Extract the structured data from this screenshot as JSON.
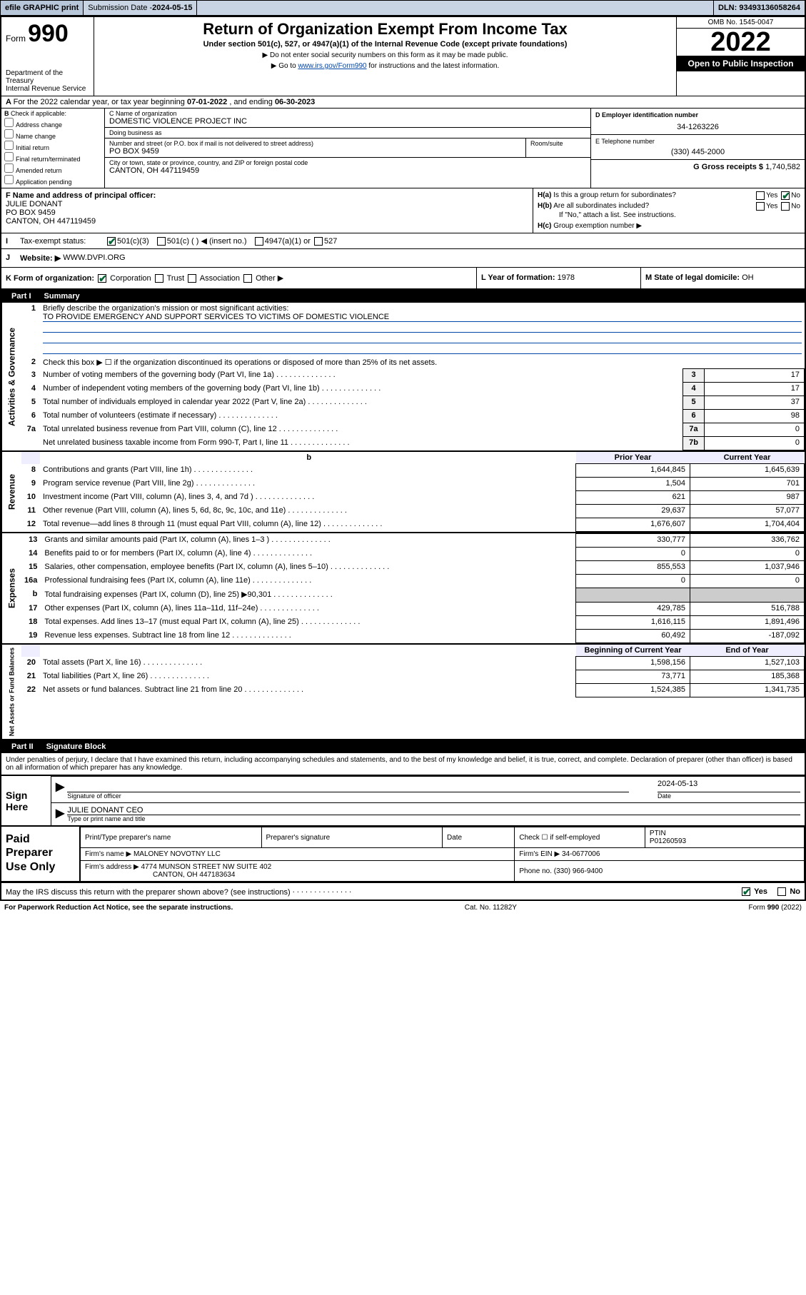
{
  "topbar": {
    "efile": "efile GRAPHIC print",
    "submission_label": "Submission Date - ",
    "submission_date": "2024-05-15",
    "dln_label": "DLN: ",
    "dln": "93493136058264"
  },
  "header": {
    "form_word": "Form",
    "form_num": "990",
    "dept": "Department of the Treasury\nInternal Revenue Service",
    "title": "Return of Organization Exempt From Income Tax",
    "sub": "Under section 501(c), 527, or 4947(a)(1) of the Internal Revenue Code (except private foundations)",
    "note1": "▶ Do not enter social security numbers on this form as it may be made public.",
    "note2_pre": "▶ Go to ",
    "note2_link": "www.irs.gov/Form990",
    "note2_post": " for instructions and the latest information.",
    "omb": "OMB No. 1545-0047",
    "year": "2022",
    "inspect": "Open to Public Inspection"
  },
  "A": {
    "text_pre": "For the 2022 calendar year, or tax year beginning ",
    "begin": "07-01-2022",
    "mid": " , and ending ",
    "end": "06-30-2023"
  },
  "B": {
    "label": "Check if applicable:",
    "opts": [
      "Address change",
      "Name change",
      "Initial return",
      "Final return/terminated",
      "Amended return",
      "Application pending"
    ],
    "lead": "B"
  },
  "C": {
    "name_label": "C Name of organization",
    "name": "DOMESTIC VIOLENCE PROJECT INC",
    "dba_label": "Doing business as",
    "dba": "",
    "street_label": "Number and street (or P.O. box if mail is not delivered to street address)",
    "room_label": "Room/suite",
    "street": "PO BOX 9459",
    "city_label": "City or town, state or province, country, and ZIP or foreign postal code",
    "city": "CANTON, OH  447119459"
  },
  "D": {
    "label": "D Employer identification number",
    "value": "34-1263226"
  },
  "E": {
    "label": "E Telephone number",
    "value": "(330) 445-2000"
  },
  "G": {
    "label": "G Gross receipts $",
    "value": "1,740,582"
  },
  "F": {
    "label": "F Name and address of principal officer:",
    "name": "JULIE DONANT",
    "addr1": "PO BOX 9459",
    "addr2": "CANTON, OH  447119459"
  },
  "H": {
    "a": "Is this a group return for subordinates?",
    "b": "Are all subordinates included?",
    "b_note": "If \"No,\" attach a list. See instructions.",
    "c_label": "Group exemption number ▶",
    "a_lead": "H(a)",
    "b_lead": "H(b)",
    "c_lead": "H(c)",
    "yes": "Yes",
    "no": "No"
  },
  "I": {
    "label": "Tax-exempt status:",
    "lead": "I",
    "o1": "501(c)(3)",
    "o2": "501(c) (   ) ◀ (insert no.)",
    "o3": "4947(a)(1) or",
    "o4": "527"
  },
  "J": {
    "lead": "J",
    "label": "Website: ▶",
    "value": "WWW.DVPI.ORG"
  },
  "K": {
    "label": "K Form of organization:",
    "o1": "Corporation",
    "o2": "Trust",
    "o3": "Association",
    "o4": "Other ▶",
    "L_label": "L Year of formation:",
    "L_val": "1978",
    "M_label": "M State of legal domicile:",
    "M_val": "OH"
  },
  "part1": {
    "label": "Part I",
    "title": "Summary"
  },
  "summary": {
    "l1_label": "Briefly describe the organization's mission or most significant activities:",
    "l1_text": "TO PROVIDE EMERGENCY AND SUPPORT SERVICES TO VICTIMS OF DOMESTIC VIOLENCE",
    "l2": "Check this box ▶ ☐  if the organization discontinued its operations or disposed of more than 25% of its net assets.",
    "rows_ag": [
      {
        "n": "3",
        "t": "Number of voting members of the governing body (Part VI, line 1a)",
        "lbl": "3",
        "v": "17"
      },
      {
        "n": "4",
        "t": "Number of independent voting members of the governing body (Part VI, line 1b)",
        "lbl": "4",
        "v": "17"
      },
      {
        "n": "5",
        "t": "Total number of individuals employed in calendar year 2022 (Part V, line 2a)",
        "lbl": "5",
        "v": "37"
      },
      {
        "n": "6",
        "t": "Total number of volunteers (estimate if necessary)",
        "lbl": "6",
        "v": "98"
      },
      {
        "n": "7a",
        "t": "Total unrelated business revenue from Part VIII, column (C), line 12",
        "lbl": "7a",
        "v": "0"
      },
      {
        "n": "",
        "t": "Net unrelated business taxable income from Form 990-T, Part I, line 11",
        "lbl": "7b",
        "v": "0"
      }
    ],
    "vlabel_ag": "Activities & Governance",
    "hdr_prior": "Prior Year",
    "hdr_curr": "Current Year",
    "vlabel_rev": "Revenue",
    "rows_rev": [
      {
        "n": "8",
        "t": "Contributions and grants (Part VIII, line 1h)",
        "p": "1,644,845",
        "c": "1,645,639"
      },
      {
        "n": "9",
        "t": "Program service revenue (Part VIII, line 2g)",
        "p": "1,504",
        "c": "701"
      },
      {
        "n": "10",
        "t": "Investment income (Part VIII, column (A), lines 3, 4, and 7d )",
        "p": "621",
        "c": "987"
      },
      {
        "n": "11",
        "t": "Other revenue (Part VIII, column (A), lines 5, 6d, 8c, 9c, 10c, and 11e)",
        "p": "29,637",
        "c": "57,077"
      },
      {
        "n": "12",
        "t": "Total revenue—add lines 8 through 11 (must equal Part VIII, column (A), line 12)",
        "p": "1,676,607",
        "c": "1,704,404"
      }
    ],
    "vlabel_exp": "Expenses",
    "rows_exp": [
      {
        "n": "13",
        "t": "Grants and similar amounts paid (Part IX, column (A), lines 1–3 )",
        "p": "330,777",
        "c": "336,762"
      },
      {
        "n": "14",
        "t": "Benefits paid to or for members (Part IX, column (A), line 4)",
        "p": "0",
        "c": "0"
      },
      {
        "n": "15",
        "t": "Salaries, other compensation, employee benefits (Part IX, column (A), lines 5–10)",
        "p": "855,553",
        "c": "1,037,946"
      },
      {
        "n": "16a",
        "t": "Professional fundraising fees (Part IX, column (A), line 11e)",
        "p": "0",
        "c": "0"
      },
      {
        "n": "b",
        "t": "Total fundraising expenses (Part IX, column (D), line 25) ▶90,301",
        "p": "",
        "c": ""
      },
      {
        "n": "17",
        "t": "Other expenses (Part IX, column (A), lines 11a–11d, 11f–24e)",
        "p": "429,785",
        "c": "516,788"
      },
      {
        "n": "18",
        "t": "Total expenses. Add lines 13–17 (must equal Part IX, column (A), line 25)",
        "p": "1,616,115",
        "c": "1,891,496"
      },
      {
        "n": "19",
        "t": "Revenue less expenses. Subtract line 18 from line 12",
        "p": "60,492",
        "c": "-187,092"
      }
    ],
    "vlabel_na": "Net Assets or Fund Balances",
    "hdr_beg": "Beginning of Current Year",
    "hdr_end": "End of Year",
    "rows_na": [
      {
        "n": "20",
        "t": "Total assets (Part X, line 16)",
        "p": "1,598,156",
        "c": "1,527,103"
      },
      {
        "n": "21",
        "t": "Total liabilities (Part X, line 26)",
        "p": "73,771",
        "c": "185,368"
      },
      {
        "n": "22",
        "t": "Net assets or fund balances. Subtract line 21 from line 20",
        "p": "1,524,385",
        "c": "1,341,735"
      }
    ]
  },
  "part2": {
    "label": "Part II",
    "title": "Signature Block"
  },
  "sig": {
    "decl": "Under penalties of perjury, I declare that I have examined this return, including accompanying schedules and statements, and to the best of my knowledge and belief, it is true, correct, and complete. Declaration of preparer (other than officer) is based on all information of which preparer has any knowledge.",
    "sign_here": "Sign Here",
    "officer_sig_label": "Signature of officer",
    "date_label": "Date",
    "date": "2024-05-13",
    "officer_name": "JULIE DONANT CEO",
    "officer_type_label": "Type or print name and title"
  },
  "paid": {
    "title": "Paid Preparer Use Only",
    "h1": "Print/Type preparer's name",
    "h2": "Preparer's signature",
    "h3": "Date",
    "h4_chk": "Check ☐ if self-employed",
    "h5": "PTIN",
    "ptin": "P01260593",
    "firm_name_label": "Firm's name    ▶",
    "firm_name": "MALONEY NOVOTNY LLC",
    "firm_ein_label": "Firm's EIN ▶",
    "firm_ein": "34-0677006",
    "firm_addr_label": "Firm's address ▶",
    "firm_addr1": "4774 MUNSON STREET NW SUITE 402",
    "firm_addr2": "CANTON, OH  447183634",
    "phone_label": "Phone no.",
    "phone": "(330) 966-9400"
  },
  "may": {
    "text": "May the IRS discuss this return with the preparer shown above? (see instructions)",
    "yes": "Yes",
    "no": "No"
  },
  "footer": {
    "left": "For Paperwork Reduction Act Notice, see the separate instructions.",
    "mid": "Cat. No. 11282Y",
    "right": "Form 990 (2022)"
  }
}
